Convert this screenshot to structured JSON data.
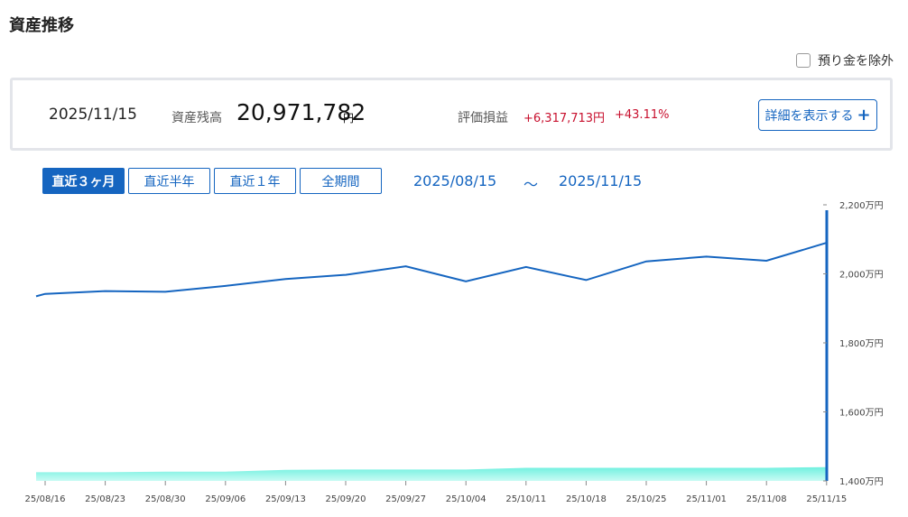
{
  "page": {
    "title": "資産推移"
  },
  "exclude_deposit": {
    "label": "預り金を除外",
    "checked": false
  },
  "summary": {
    "date": "2025/11/15",
    "balance_label": "資産残高",
    "balance_value": "20,971,782",
    "balance_unit": "円",
    "pl_label": "評価損益",
    "pl_value": "+6,317,713円",
    "pl_rate": "+43.11%",
    "detail_button": "詳細を表示する"
  },
  "periods": [
    {
      "label": "直近３ヶ月",
      "active": true
    },
    {
      "label": "直近半年",
      "active": false
    },
    {
      "label": "直近１年",
      "active": false
    },
    {
      "label": "全期間",
      "active": false
    }
  ],
  "range": {
    "start": "2025/08/15",
    "separator": "～",
    "end": "2025/11/15"
  },
  "colors": {
    "accent": "#1565c0",
    "loss_gain": "#c8102e",
    "area": "#6ff0df"
  },
  "chart_data": {
    "type": "line",
    "ylim": [
      1400,
      2200
    ],
    "y_ticks": [
      {
        "value": 2200,
        "label": "2,200万円"
      },
      {
        "value": 2000,
        "label": "2,000万円"
      },
      {
        "value": 1800,
        "label": "1,800万円"
      },
      {
        "value": 1600,
        "label": "1,600万円"
      },
      {
        "value": 1400,
        "label": "1,400万円"
      }
    ],
    "x_ticks": [
      "25/08/16",
      "25/08/23",
      "25/08/30",
      "25/09/06",
      "25/09/13",
      "25/09/20",
      "25/09/27",
      "25/10/04",
      "25/10/11",
      "25/10/18",
      "25/10/25",
      "25/11/01",
      "25/11/08",
      "25/11/15"
    ],
    "series": [
      {
        "kind": "line",
        "color": "#1565c0",
        "points": [
          [
            -0.15,
            1935
          ],
          [
            0,
            1942
          ],
          [
            1,
            1950
          ],
          [
            2,
            1948
          ],
          [
            3,
            1965
          ],
          [
            4,
            1985
          ],
          [
            5,
            1997
          ],
          [
            6,
            2022
          ],
          [
            7,
            1978
          ],
          [
            8,
            2020
          ],
          [
            9,
            1982
          ],
          [
            10,
            2036
          ],
          [
            11,
            2050
          ],
          [
            12,
            2038
          ],
          [
            13,
            2090
          ]
        ]
      },
      {
        "kind": "area",
        "color": "#6ff0df",
        "points": [
          [
            -0.15,
            1425
          ],
          [
            0,
            1425
          ],
          [
            1,
            1425
          ],
          [
            2,
            1427
          ],
          [
            3,
            1427
          ],
          [
            4,
            1432
          ],
          [
            5,
            1433
          ],
          [
            6,
            1433
          ],
          [
            7,
            1433
          ],
          [
            8,
            1438
          ],
          [
            9,
            1438
          ],
          [
            10,
            1438
          ],
          [
            11,
            1438
          ],
          [
            12,
            1438
          ],
          [
            13,
            1440
          ]
        ]
      }
    ]
  }
}
